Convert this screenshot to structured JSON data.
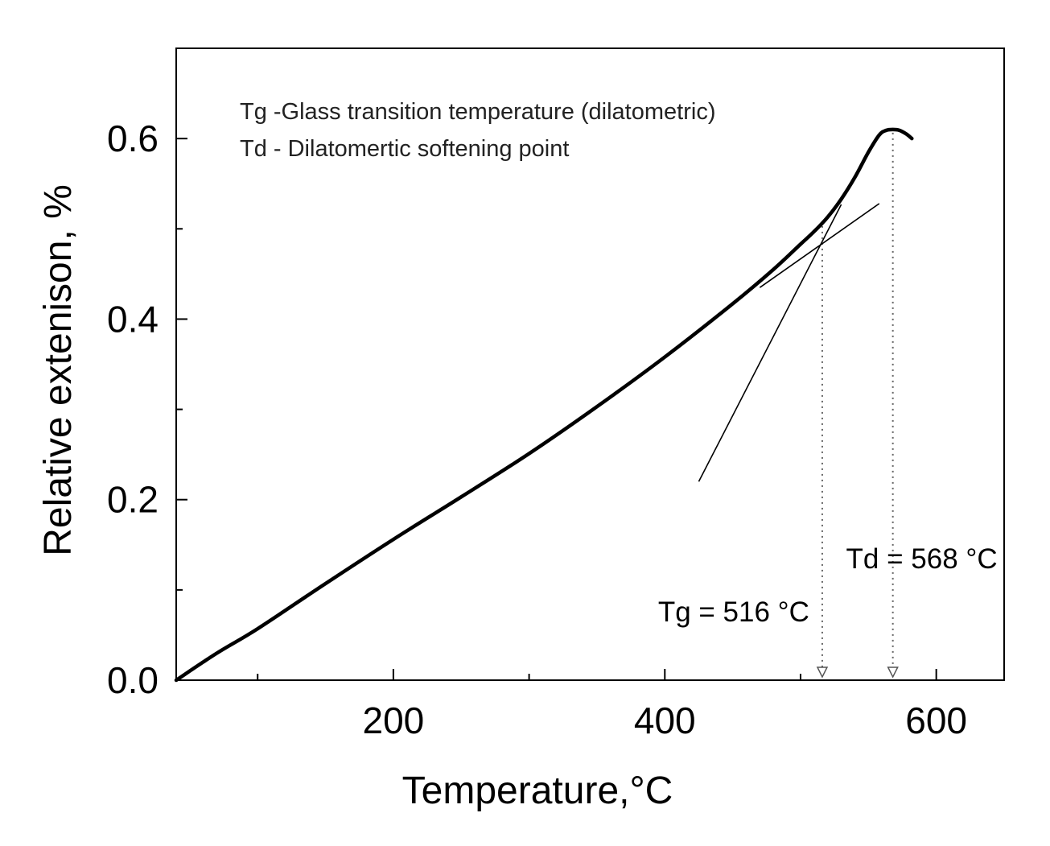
{
  "chart_data": {
    "type": "line",
    "xlabel": "Temperature,",
    "xlabel_unit": "°C",
    "ylabel": "Relative extenison, %",
    "xlim": [
      40,
      650
    ],
    "ylim": [
      0.0,
      0.7
    ],
    "xticks": [
      200,
      400,
      600
    ],
    "xticks_minor": [
      100,
      300,
      500
    ],
    "yticks": [
      0.0,
      0.2,
      0.4,
      0.6
    ],
    "yticks_minor": [
      0.1,
      0.3,
      0.5
    ],
    "ytick_labels": [
      "0.0",
      "0.2",
      "0.4",
      "0.6"
    ],
    "legend_lines": [
      "Tg -Glass transition temperature (dilatometric)",
      "Td - Dilatomertic softening point"
    ],
    "series": [
      {
        "name": "Relative extension curve",
        "x": [
          40,
          70,
          100,
          150,
          200,
          250,
          300,
          350,
          400,
          450,
          480,
          500,
          510,
          520,
          530,
          540,
          550,
          558,
          563,
          568,
          573,
          578,
          582
        ],
        "y": [
          0.0,
          0.03,
          0.057,
          0.107,
          0.156,
          0.203,
          0.251,
          0.303,
          0.358,
          0.417,
          0.455,
          0.483,
          0.497,
          0.513,
          0.533,
          0.557,
          0.585,
          0.604,
          0.609,
          0.61,
          0.609,
          0.605,
          0.6
        ]
      }
    ],
    "tangent_lines": [
      {
        "name": "low-temperature tangent",
        "x": [
          470,
          558
        ],
        "y": [
          0.435,
          0.528
        ]
      },
      {
        "name": "high-temperature tangent",
        "x": [
          425,
          530
        ],
        "y": [
          0.22,
          0.527
        ]
      }
    ],
    "annotations": [
      {
        "label": "Tg = 516 °C",
        "x": 516
      },
      {
        "label": "Td = 568 °C",
        "x": 568
      }
    ]
  }
}
